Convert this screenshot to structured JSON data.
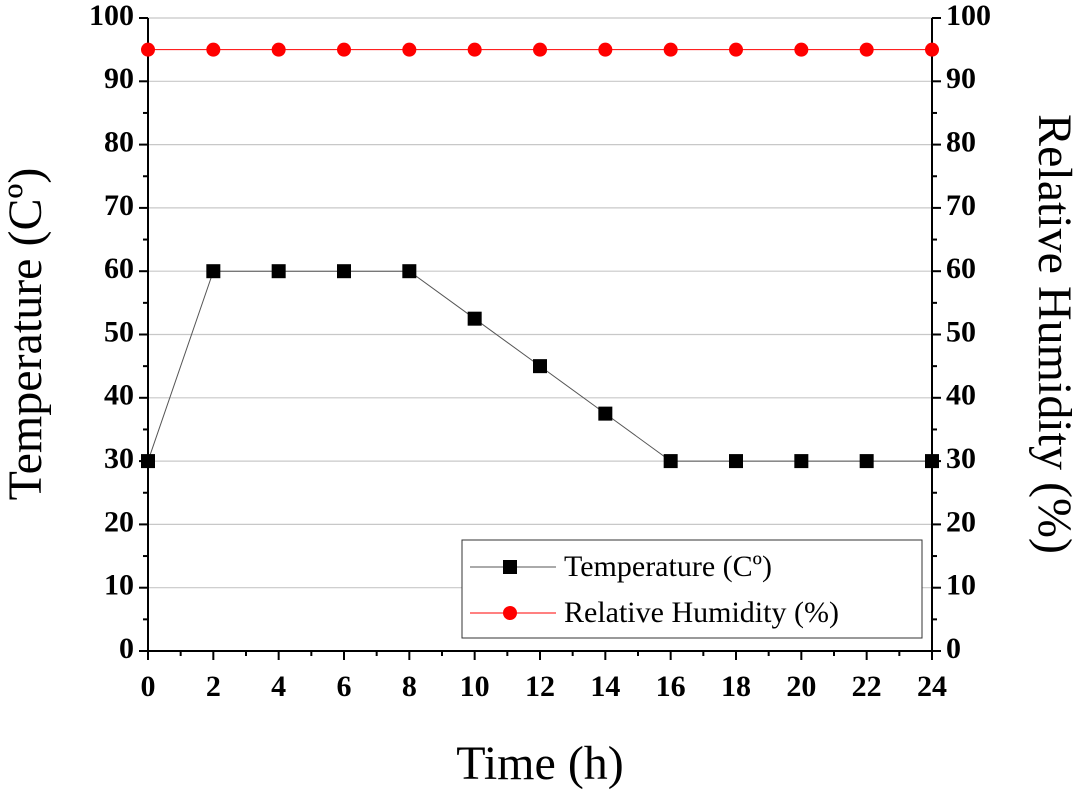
{
  "chart_data": {
    "type": "line",
    "x_label": "Time (h)",
    "y_label": "Temperature (Cº)",
    "y2_label": "Relative Humidity (%)",
    "x": [
      0,
      2,
      4,
      6,
      8,
      10,
      12,
      14,
      16,
      18,
      20,
      22,
      24
    ],
    "series": [
      {
        "name": "Temperature (Cº)",
        "color": "#000000",
        "marker": "square",
        "values": [
          30,
          60,
          60,
          60,
          60,
          52.5,
          45,
          37.5,
          30,
          30,
          30,
          30,
          30
        ]
      },
      {
        "name": "Relative Humidity (%)",
        "color": "#ff0000",
        "marker": "circle",
        "axis": "y2",
        "values": [
          95,
          95,
          95,
          95,
          95,
          95,
          95,
          95,
          95,
          95,
          95,
          95,
          95
        ]
      }
    ],
    "xlim": [
      0,
      24
    ],
    "xticks": [
      0,
      2,
      4,
      6,
      8,
      10,
      12,
      14,
      16,
      18,
      20,
      22,
      24
    ],
    "ylim": [
      0,
      100
    ],
    "yticks": [
      0,
      10,
      20,
      30,
      40,
      50,
      60,
      70,
      80,
      90,
      100
    ],
    "y2lim": [
      0,
      100
    ],
    "y2ticks": [
      0,
      10,
      20,
      30,
      40,
      50,
      60,
      70,
      80,
      90,
      100
    ],
    "grid": true,
    "legend": "lower right"
  }
}
